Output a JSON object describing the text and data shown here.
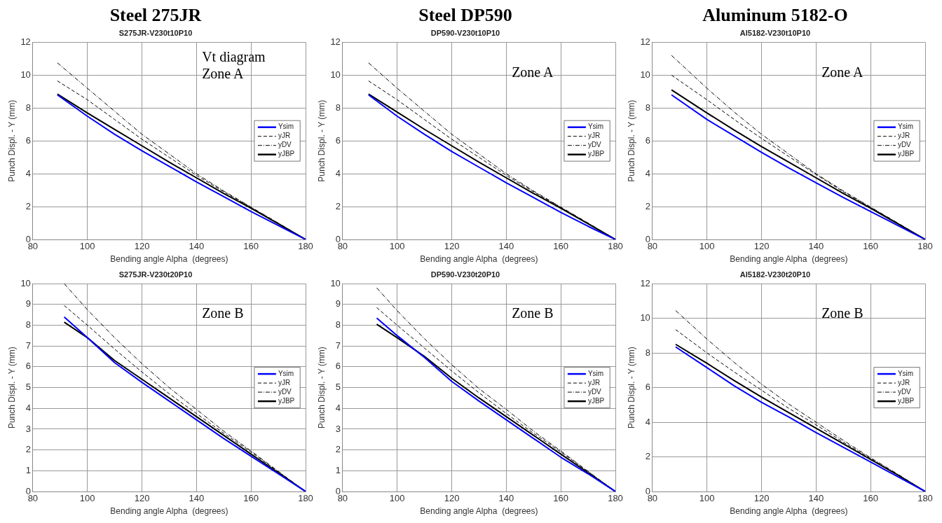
{
  "chart_data": [
    {
      "type": "line",
      "title": "Steel 275JR",
      "subtitle": "S275JR-V230t10P10",
      "xlabel": "Bending angle Alpha  (degrees)",
      "ylabel": "Punch Displ. - Y (mm)",
      "annotations": [
        "Vt diagram",
        "Zone A"
      ],
      "xlim": [
        80,
        180
      ],
      "xticks": [
        80,
        100,
        120,
        140,
        160,
        180
      ],
      "ylim": [
        0,
        12
      ],
      "yticks": [
        0,
        2,
        4,
        6,
        8,
        10,
        12
      ],
      "grid": true,
      "legend": "right",
      "marker": "none",
      "x": [
        89,
        100,
        110,
        120,
        130,
        140,
        150,
        160,
        170,
        180
      ],
      "series": [
        {
          "name": "Ysim",
          "color": "#0000ff",
          "line_style": "solid",
          "values": [
            8.8,
            7.5,
            6.4,
            5.4,
            4.45,
            3.5,
            2.6,
            1.7,
            0.85,
            0
          ]
        },
        {
          "name": "yJR",
          "color": "#000000",
          "line_style": "dashed",
          "values": [
            9.65,
            8.5,
            7.3,
            6.1,
            5.0,
            3.9,
            2.9,
            1.95,
            0.97,
            0
          ]
        },
        {
          "name": "yDV",
          "color": "#000000",
          "line_style": "dotted",
          "values": [
            10.75,
            9.2,
            7.8,
            6.4,
            5.2,
            4.0,
            2.95,
            1.97,
            1.0,
            0
          ]
        },
        {
          "name": "yJBP",
          "color": "#000000",
          "line_style": "solid",
          "values": [
            8.85,
            7.7,
            6.7,
            5.7,
            4.7,
            3.75,
            2.8,
            1.9,
            0.95,
            0
          ]
        }
      ]
    },
    {
      "type": "line",
      "title": "Steel DP590",
      "subtitle": "DP590-V230t10P10",
      "xlabel": "Bending angle Alpha  (degrees)",
      "ylabel": "Punch Displ. - Y (mm)",
      "annotations": [
        "Zone A"
      ],
      "xlim": [
        80,
        180
      ],
      "xticks": [
        80,
        100,
        120,
        140,
        160,
        180
      ],
      "ylim": [
        0,
        12
      ],
      "yticks": [
        0,
        2,
        4,
        6,
        8,
        10,
        12
      ],
      "grid": true,
      "legend": "right",
      "marker": "none",
      "x": [
        89.5,
        100,
        110,
        120,
        130,
        140,
        150,
        160,
        170,
        180
      ],
      "series": [
        {
          "name": "Ysim",
          "color": "#0000ff",
          "line_style": "solid",
          "values": [
            8.8,
            7.5,
            6.4,
            5.35,
            4.4,
            3.45,
            2.55,
            1.65,
            0.8,
            0
          ]
        },
        {
          "name": "yJR",
          "color": "#000000",
          "line_style": "dashed",
          "values": [
            9.65,
            8.5,
            7.3,
            6.1,
            5.0,
            3.9,
            2.9,
            1.95,
            0.97,
            0
          ]
        },
        {
          "name": "yDV",
          "color": "#000000",
          "line_style": "dotted",
          "values": [
            10.75,
            9.2,
            7.8,
            6.4,
            5.2,
            4.0,
            2.95,
            1.97,
            1.0,
            0
          ]
        },
        {
          "name": "yJBP",
          "color": "#000000",
          "line_style": "solid",
          "values": [
            8.85,
            7.75,
            6.7,
            5.7,
            4.7,
            3.75,
            2.8,
            1.9,
            0.95,
            0
          ]
        }
      ]
    },
    {
      "type": "line",
      "title": "Aluminum 5182-O",
      "subtitle": "Al5182-V230t10P10",
      "xlabel": "Bending angle Alpha  (degrees)",
      "ylabel": "Punch Displ. - Y (mm)",
      "annotations": [
        "Zone A"
      ],
      "xlim": [
        80,
        180
      ],
      "xticks": [
        80,
        100,
        120,
        140,
        160,
        180
      ],
      "ylim": [
        0,
        12
      ],
      "yticks": [
        0,
        2,
        4,
        6,
        8,
        10,
        12
      ],
      "grid": true,
      "legend": "right",
      "marker": "none",
      "x": [
        87,
        100,
        110,
        120,
        130,
        140,
        150,
        160,
        170,
        180
      ],
      "series": [
        {
          "name": "Ysim",
          "color": "#0000ff",
          "line_style": "solid",
          "values": [
            8.8,
            7.3,
            6.3,
            5.3,
            4.35,
            3.45,
            2.55,
            1.7,
            0.85,
            0
          ]
        },
        {
          "name": "yJR",
          "color": "#000000",
          "line_style": "dashed",
          "values": [
            10.0,
            8.5,
            7.3,
            6.15,
            5.05,
            3.95,
            2.9,
            1.95,
            0.97,
            0
          ]
        },
        {
          "name": "yDV",
          "color": "#000000",
          "line_style": "dotted",
          "values": [
            11.2,
            9.2,
            7.75,
            6.4,
            5.2,
            4.0,
            2.95,
            1.97,
            1.0,
            0
          ]
        },
        {
          "name": "yJBP",
          "color": "#000000",
          "line_style": "solid",
          "values": [
            9.1,
            7.7,
            6.65,
            5.65,
            4.7,
            3.75,
            2.8,
            1.9,
            0.95,
            0
          ]
        }
      ]
    },
    {
      "type": "line",
      "subtitle": "S275JR-V230t20P10",
      "xlabel": "Bending angle Alpha  (degrees)",
      "ylabel": "Punch Displ. - Y (mm)",
      "annotations": [
        "Zone B"
      ],
      "xlim": [
        80,
        180
      ],
      "xticks": [
        80,
        100,
        120,
        140,
        160,
        180
      ],
      "ylim": [
        0,
        10
      ],
      "yticks": [
        0,
        1,
        2,
        3,
        4,
        5,
        6,
        7,
        8,
        9,
        10
      ],
      "grid": true,
      "legend": "right",
      "marker": "none",
      "x": [
        91.5,
        100,
        110,
        120,
        130,
        140,
        150,
        160,
        170,
        180
      ],
      "series": [
        {
          "name": "Ysim",
          "color": "#0000ff",
          "line_style": "solid",
          "values": [
            8.4,
            7.4,
            6.2,
            5.25,
            4.35,
            3.45,
            2.55,
            1.7,
            0.85,
            0
          ]
        },
        {
          "name": "yJR",
          "color": "#000000",
          "line_style": "dashed",
          "values": [
            8.95,
            8.0,
            6.85,
            5.75,
            4.7,
            3.75,
            2.8,
            1.9,
            0.95,
            0
          ]
        },
        {
          "name": "yDV",
          "color": "#000000",
          "line_style": "dotted",
          "values": [
            10.0,
            8.75,
            7.4,
            6.15,
            5.0,
            3.95,
            2.9,
            1.95,
            0.97,
            0
          ]
        },
        {
          "name": "yJBP",
          "color": "#000000",
          "line_style": "solid",
          "values": [
            8.15,
            7.4,
            6.3,
            5.4,
            4.5,
            3.6,
            2.7,
            1.8,
            0.9,
            0
          ]
        }
      ]
    },
    {
      "type": "line",
      "subtitle": "DP590-V230t20P10",
      "xlabel": "Bending angle Alpha  (degrees)",
      "ylabel": "Punch Displ. - Y (mm)",
      "annotations": [
        "Zone B"
      ],
      "xlim": [
        80,
        180
      ],
      "xticks": [
        80,
        100,
        120,
        140,
        160,
        180
      ],
      "ylim": [
        0,
        10
      ],
      "yticks": [
        0,
        1,
        2,
        3,
        4,
        5,
        6,
        7,
        8,
        9,
        10
      ],
      "grid": true,
      "legend": "right",
      "marker": "none",
      "x": [
        92.5,
        100,
        110,
        120,
        130,
        140,
        150,
        160,
        170,
        180
      ],
      "series": [
        {
          "name": "Ysim",
          "color": "#0000ff",
          "line_style": "solid",
          "values": [
            8.35,
            7.5,
            6.45,
            5.3,
            4.35,
            3.45,
            2.55,
            1.65,
            0.85,
            0
          ]
        },
        {
          "name": "yJR",
          "color": "#000000",
          "line_style": "dashed",
          "values": [
            8.85,
            8.0,
            6.9,
            5.8,
            4.75,
            3.75,
            2.8,
            1.9,
            0.95,
            0
          ]
        },
        {
          "name": "yDV",
          "color": "#000000",
          "line_style": "dotted",
          "values": [
            9.8,
            8.7,
            7.35,
            6.1,
            4.95,
            3.95,
            2.9,
            1.95,
            0.97,
            0
          ]
        },
        {
          "name": "yJBP",
          "color": "#000000",
          "line_style": "solid",
          "values": [
            8.05,
            7.4,
            6.5,
            5.45,
            4.5,
            3.6,
            2.7,
            1.8,
            0.9,
            0
          ]
        }
      ]
    },
    {
      "type": "line",
      "subtitle": "Al5182-V230t20P10",
      "xlabel": "Bending angle Alpha  (degrees)",
      "ylabel": "Punch Displ. - Y (mm)",
      "annotations": [
        "Zone B"
      ],
      "xlim": [
        80,
        180
      ],
      "xticks": [
        80,
        100,
        120,
        140,
        160,
        180
      ],
      "ylim": [
        0,
        12
      ],
      "yticks": [
        0,
        2,
        4,
        6,
        8,
        10,
        12
      ],
      "grid": true,
      "legend": "right",
      "marker": "none",
      "x": [
        88.5,
        100,
        110,
        120,
        130,
        140,
        150,
        160,
        170,
        180
      ],
      "series": [
        {
          "name": "Ysim",
          "color": "#0000ff",
          "line_style": "solid",
          "values": [
            8.35,
            7.15,
            6.1,
            5.15,
            4.3,
            3.4,
            2.55,
            1.7,
            0.85,
            0
          ]
        },
        {
          "name": "yJR",
          "color": "#000000",
          "line_style": "dashed",
          "values": [
            9.35,
            8.0,
            6.9,
            5.85,
            4.8,
            3.85,
            2.85,
            1.9,
            0.95,
            0
          ]
        },
        {
          "name": "yDV",
          "color": "#000000",
          "line_style": "dotted",
          "values": [
            10.45,
            8.8,
            7.45,
            6.2,
            5.05,
            4.0,
            2.95,
            1.95,
            1.0,
            0
          ]
        },
        {
          "name": "yJBP",
          "color": "#000000",
          "line_style": "solid",
          "values": [
            8.5,
            7.4,
            6.4,
            5.45,
            4.55,
            3.65,
            2.75,
            1.85,
            0.95,
            0
          ]
        }
      ]
    }
  ]
}
